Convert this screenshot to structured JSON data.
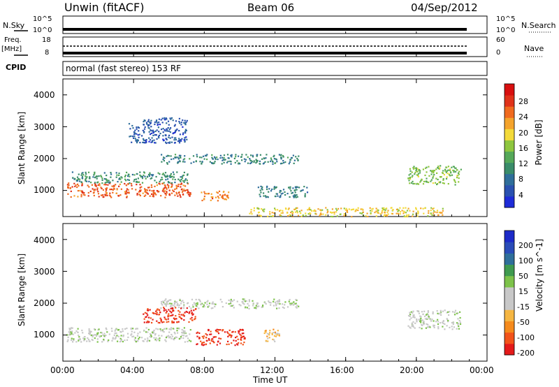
{
  "header": {
    "station": "Unwin (fitACF)",
    "beam": "Beam 06",
    "date": "04/Sep/2012"
  },
  "top_panels": {
    "nsky_label": "N.Sky",
    "nsky_ticks": [
      "10^5",
      "10^0"
    ],
    "nsearch_label": "N.Search",
    "nsearch_ticks": [
      "10^5",
      "10^0"
    ],
    "freq_label_line1": "Freq.",
    "freq_label_line2": "[MHz]",
    "freq_ticks": [
      "18",
      "8"
    ],
    "nave_label": "Nave",
    "nave_ticks": [
      "60",
      "0"
    ],
    "cpid_label": "CPID",
    "cpid_value": "normal (fast stereo) 153 RF"
  },
  "colors": {
    "power": [
      "#1e2bd8",
      "#2a51b0",
      "#2f6e9a",
      "#3a8c6a",
      "#55a859",
      "#8ec63f",
      "#f3da3a",
      "#f4a32c",
      "#f06a1f",
      "#e0321a",
      "#d80f0f"
    ],
    "velocity": [
      "#e41a1a",
      "#f2531a",
      "#f58a1c",
      "#f5b642",
      "#c8c8c8",
      "#c8c8c8",
      "#7dc24a",
      "#3f9a4f",
      "#2f6f9a",
      "#2a4cb8",
      "#1c2ac8"
    ],
    "ground": "#a0a0a0"
  },
  "chart_data": [
    {
      "type": "heatmap",
      "title": "Power",
      "xlabel": "Time UT",
      "ylabel": "Slant Range [km]",
      "x_range_hours": [
        0,
        24
      ],
      "x_ticks": [
        "00:00",
        "04:00",
        "08:00",
        "12:00",
        "16:00",
        "20:00",
        "00:00"
      ],
      "y_range_km": [
        180,
        4500
      ],
      "y_ticks": [
        1000,
        2000,
        3000,
        4000
      ],
      "colorbar_label": "Power [dB]",
      "colorbar_ticks": [
        "4",
        "8",
        "12",
        "16",
        "20",
        "24",
        "28"
      ],
      "colorbar_range": [
        0,
        30
      ],
      "regions": [
        {
          "t0": 0.2,
          "t1": 7.2,
          "r0": 800,
          "r1": 1250,
          "value": 24
        },
        {
          "t0": 0.5,
          "t1": 7.2,
          "r0": 1250,
          "r1": 1600,
          "value": 10
        },
        {
          "t0": 5.5,
          "t1": 13.3,
          "r0": 1850,
          "r1": 2150,
          "value": 9
        },
        {
          "t0": 7.8,
          "t1": 9.5,
          "r0": 700,
          "r1": 1000,
          "value": 22
        },
        {
          "t0": 11.0,
          "t1": 13.8,
          "r0": 800,
          "r1": 1150,
          "value": 8
        },
        {
          "t0": 3.7,
          "t1": 7.0,
          "r0": 2500,
          "r1": 3300,
          "value": 5
        },
        {
          "t0": 19.5,
          "t1": 22.5,
          "r0": 1200,
          "r1": 1800,
          "value": 14
        },
        {
          "t0": 10.5,
          "t1": 21.5,
          "r0": 200,
          "r1": 480,
          "value": 18
        }
      ]
    },
    {
      "type": "heatmap",
      "title": "Velocity",
      "xlabel": "Time UT",
      "ylabel": "Slant Range [km]",
      "x_range_hours": [
        0,
        24
      ],
      "x_ticks": [
        "00:00",
        "04:00",
        "08:00",
        "12:00",
        "16:00",
        "20:00",
        "00:00"
      ],
      "y_range_km": [
        180,
        4500
      ],
      "y_ticks": [
        1000,
        2000,
        3000,
        4000
      ],
      "colorbar_label": "Velocity [m s^-1]",
      "colorbar_ticks": [
        "200",
        "100",
        "50",
        "15",
        "-15",
        "-50",
        "-100",
        "-200"
      ],
      "colorbar_range": [
        -250,
        250
      ],
      "regions": [
        {
          "t0": 0.2,
          "t1": 7.2,
          "r0": 800,
          "r1": 1250,
          "value": 0
        },
        {
          "t0": 5.5,
          "t1": 13.3,
          "r0": 1850,
          "r1": 2150,
          "value": 0
        },
        {
          "t0": 4.5,
          "t1": 7.5,
          "r0": 1400,
          "r1": 1900,
          "value": -210
        },
        {
          "t0": 7.5,
          "t1": 10.3,
          "r0": 700,
          "r1": 1200,
          "value": -210
        },
        {
          "t0": 11.3,
          "t1": 12.3,
          "r0": 800,
          "r1": 1200,
          "value": -80
        },
        {
          "t0": 19.5,
          "t1": 22.5,
          "r0": 1200,
          "r1": 1800,
          "value": 0
        }
      ]
    }
  ]
}
